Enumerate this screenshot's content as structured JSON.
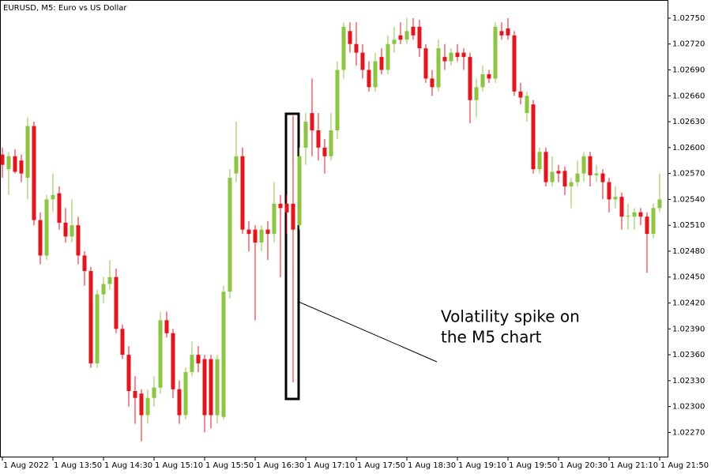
{
  "chart_data": {
    "type": "candlestick",
    "title": "EURUSD, M5:  Euro vs US Dollar",
    "annotation": [
      "Volatility spike on",
      "the M5 chart"
    ],
    "up_color": "#8cc63f",
    "down_color": "#e8121a",
    "ylim": [
      1.02242,
      1.02771
    ],
    "yticks": [
      {
        "value": 1.0275,
        "label": "1.02750"
      },
      {
        "value": 1.0272,
        "label": "1.02720"
      },
      {
        "value": 1.0269,
        "label": "1.02690"
      },
      {
        "value": 1.0266,
        "label": "1.02660"
      },
      {
        "value": 1.0263,
        "label": "1.02630"
      },
      {
        "value": 1.026,
        "label": "1.02600"
      },
      {
        "value": 1.0257,
        "label": "1.02570"
      },
      {
        "value": 1.0254,
        "label": "1.02540"
      },
      {
        "value": 1.0251,
        "label": "1.02510"
      },
      {
        "value": 1.0248,
        "label": "1.02480"
      },
      {
        "value": 1.0245,
        "label": "1.02450"
      },
      {
        "value": 1.0242,
        "label": "1.02420"
      },
      {
        "value": 1.0239,
        "label": "1.02390"
      },
      {
        "value": 1.0236,
        "label": "1.02360"
      },
      {
        "value": 1.0233,
        "label": "1.02330"
      },
      {
        "value": 1.023,
        "label": "1.02300"
      },
      {
        "value": 1.0227,
        "label": "1.02270"
      }
    ],
    "categories": [
      "1 Aug 2022",
      null,
      null,
      null,
      null,
      null,
      null,
      null,
      "1 Aug 13:50",
      null,
      null,
      null,
      null,
      null,
      null,
      null,
      "1 Aug 14:30",
      null,
      null,
      null,
      null,
      null,
      null,
      null,
      "1 Aug 15:10",
      null,
      null,
      null,
      null,
      null,
      null,
      null,
      "1 Aug 15:50",
      null,
      null,
      null,
      null,
      null,
      null,
      null,
      "1 Aug 16:30",
      null,
      null,
      null,
      null,
      null,
      null,
      null,
      "1 Aug 17:10",
      null,
      null,
      null,
      null,
      null,
      null,
      null,
      "1 Aug 17:50",
      null,
      null,
      null,
      null,
      null,
      null,
      null,
      "1 Aug 18:30",
      null,
      null,
      null,
      null,
      null,
      null,
      null,
      "1 Aug 19:10",
      null,
      null,
      null,
      null,
      null,
      null,
      null,
      "1 Aug 19:50",
      null,
      null,
      null,
      null,
      null,
      null,
      null,
      "1 Aug 20:30",
      null,
      null,
      null,
      null,
      null,
      null,
      null,
      "1 Aug 21:10",
      null,
      null,
      null,
      null,
      null,
      null,
      null,
      "1 Aug 21:50"
    ],
    "open": [
      1.02592,
      1.02575,
      1.0259,
      1.02585,
      1.02565,
      1.02625,
      1.02516,
      1.02475,
      1.0254,
      1.02547,
      1.02513,
      1.02497,
      1.0251,
      1.02475,
      1.02457,
      1.0235,
      1.0243,
      1.02442,
      1.0245,
      1.0239,
      1.0236,
      1.02318,
      1.02315,
      1.0229,
      1.0231,
      1.02322,
      1.024,
      1.02385,
      1.0232,
      1.0229,
      1.0234,
      1.0236,
      1.02355,
      1.02355,
      1.0229,
      1.02288,
      1.02433,
      1.0257,
      1.0259,
      1.02505,
      1.02505,
      1.0249,
      1.02505,
      1.025,
      1.02535,
      1.02535,
      1.02535,
      1.0251,
      1.026,
      1.0264,
      1.0262,
      1.026,
      1.0259,
      1.0262,
      1.0269,
      1.02735,
      1.0272,
      1.0271,
      1.0269,
      1.0267,
      1.02705,
      1.0269,
      1.0272,
      1.0273,
      1.02725,
      1.0274,
      1.0274,
      1.02715,
      1.0268,
      1.0267,
      1.02705,
      1.027,
      1.0271,
      1.0271,
      1.02705,
      1.02655,
      1.0267,
      1.02685,
      1.0268,
      1.02735,
      1.02738,
      1.0273,
      1.02665,
      1.0264,
      1.0265,
      1.02575,
      1.02595,
      1.0256,
      1.02573,
      1.02573,
      1.02555,
      1.0256,
      1.0257,
      1.0259,
      1.02568,
      1.0257,
      1.0256,
      1.0254,
      1.02543,
      1.0252,
      1.0252,
      1.02525,
      1.0252,
      1.025,
      1.0253
    ],
    "high": [
      1.026,
      1.02595,
      1.02598,
      1.02592,
      1.02635,
      1.0263,
      1.02525,
      1.02545,
      1.0257,
      1.02555,
      1.0253,
      1.0254,
      1.0252,
      1.0248,
      1.02462,
      1.02435,
      1.0245,
      1.0247,
      1.0246,
      1.02395,
      1.0237,
      1.02335,
      1.0232,
      1.0232,
      1.02335,
      1.0241,
      1.0241,
      1.0239,
      1.0233,
      1.02345,
      1.02375,
      1.0237,
      1.0236,
      1.0236,
      1.0236,
      1.0244,
      1.02575,
      1.0263,
      1.026,
      1.02515,
      1.0251,
      1.0251,
      1.02515,
      1.0256,
      1.02545,
      1.02545,
      1.02637,
      1.026,
      1.0264,
      1.0268,
      1.0264,
      1.0261,
      1.0264,
      1.027,
      1.02745,
      1.02745,
      1.02745,
      1.0272,
      1.027,
      1.0271,
      1.02715,
      1.0273,
      1.0274,
      1.02745,
      1.0275,
      1.0275,
      1.02748,
      1.0272,
      1.0269,
      1.02725,
      1.0272,
      1.02715,
      1.0272,
      1.02715,
      1.0271,
      1.0268,
      1.02695,
      1.0269,
      1.02745,
      1.02745,
      1.0275,
      1.02735,
      1.02675,
      1.02665,
      1.02655,
      1.026,
      1.026,
      1.0259,
      1.0258,
      1.02578,
      1.02565,
      1.02585,
      1.02595,
      1.02595,
      1.0258,
      1.02575,
      1.02565,
      1.02555,
      1.02548,
      1.02535,
      1.0253,
      1.0253,
      1.02525,
      1.02535,
      1.0257
    ],
    "low": [
      1.02565,
      1.02545,
      1.0257,
      1.0256,
      1.0254,
      1.0251,
      1.02465,
      1.0247,
      1.02525,
      1.02505,
      1.0249,
      1.0249,
      1.02465,
      1.0244,
      1.02345,
      1.02345,
      1.0242,
      1.02435,
      1.02385,
      1.02355,
      1.023,
      1.0228,
      1.0226,
      1.0228,
      1.023,
      1.02315,
      1.0238,
      1.0231,
      1.0228,
      1.02285,
      1.02335,
      1.0234,
      1.0227,
      1.02275,
      1.0228,
      1.02285,
      1.02425,
      1.0256,
      1.025,
      1.0248,
      1.024,
      1.0248,
      1.0247,
      1.0249,
      1.0245,
      1.025,
      1.02328,
      1.02505,
      1.0258,
      1.0259,
      1.02585,
      1.0257,
      1.02585,
      1.0261,
      1.0268,
      1.0271,
      1.02695,
      1.0268,
      1.02665,
      1.02665,
      1.02685,
      1.02685,
      1.0271,
      1.0272,
      1.0272,
      1.02725,
      1.02705,
      1.02675,
      1.0266,
      1.02665,
      1.0269,
      1.02695,
      1.027,
      1.0269,
      1.02628,
      1.02635,
      1.02665,
      1.02675,
      1.02675,
      1.02725,
      1.02725,
      1.0266,
      1.0265,
      1.0263,
      1.0257,
      1.0257,
      1.02555,
      1.02555,
      1.0256,
      1.02545,
      1.0253,
      1.02555,
      1.0256,
      1.02555,
      1.0256,
      1.0254,
      1.02525,
      1.0253,
      1.02505,
      1.02505,
      1.02505,
      1.0251,
      1.02455,
      1.02495,
      1.02525
    ],
    "close": [
      1.0258,
      1.0259,
      1.02572,
      1.0257,
      1.02625,
      1.02516,
      1.02475,
      1.0254,
      1.02545,
      1.02513,
      1.02497,
      1.0251,
      1.02475,
      1.02457,
      1.0235,
      1.0243,
      1.02442,
      1.0245,
      1.0239,
      1.0236,
      1.02318,
      1.0231,
      1.0229,
      1.0231,
      1.02322,
      1.024,
      1.02385,
      1.0232,
      1.0229,
      1.0234,
      1.0236,
      1.0235,
      1.0229,
      1.0229,
      1.02355,
      1.02433,
      1.02565,
      1.0259,
      1.02505,
      1.025,
      1.0249,
      1.02505,
      1.025,
      1.02535,
      1.0253,
      1.02525,
      1.02505,
      1.0259,
      1.0263,
      1.0262,
      1.026,
      1.0259,
      1.0262,
      1.0269,
      1.0274,
      1.0272,
      1.0271,
      1.0269,
      1.0267,
      1.027,
      1.0269,
      1.0272,
      1.02725,
      1.02725,
      1.02735,
      1.0273,
      1.02715,
      1.0268,
      1.0267,
      1.02715,
      1.027,
      1.0271,
      1.02705,
      1.02705,
      1.02655,
      1.0267,
      1.02685,
      1.0268,
      1.0274,
      1.0273,
      1.0273,
      1.02665,
      1.02658,
      1.0266,
      1.02575,
      1.02595,
      1.0256,
      1.02572,
      1.0257,
      1.02555,
      1.0256,
      1.0257,
      1.0259,
      1.02568,
      1.0257,
      1.0256,
      1.0254,
      1.02543,
      1.0252,
      1.02521,
      1.02525,
      1.0252,
      1.025,
      1.0253,
      1.0254
    ]
  }
}
